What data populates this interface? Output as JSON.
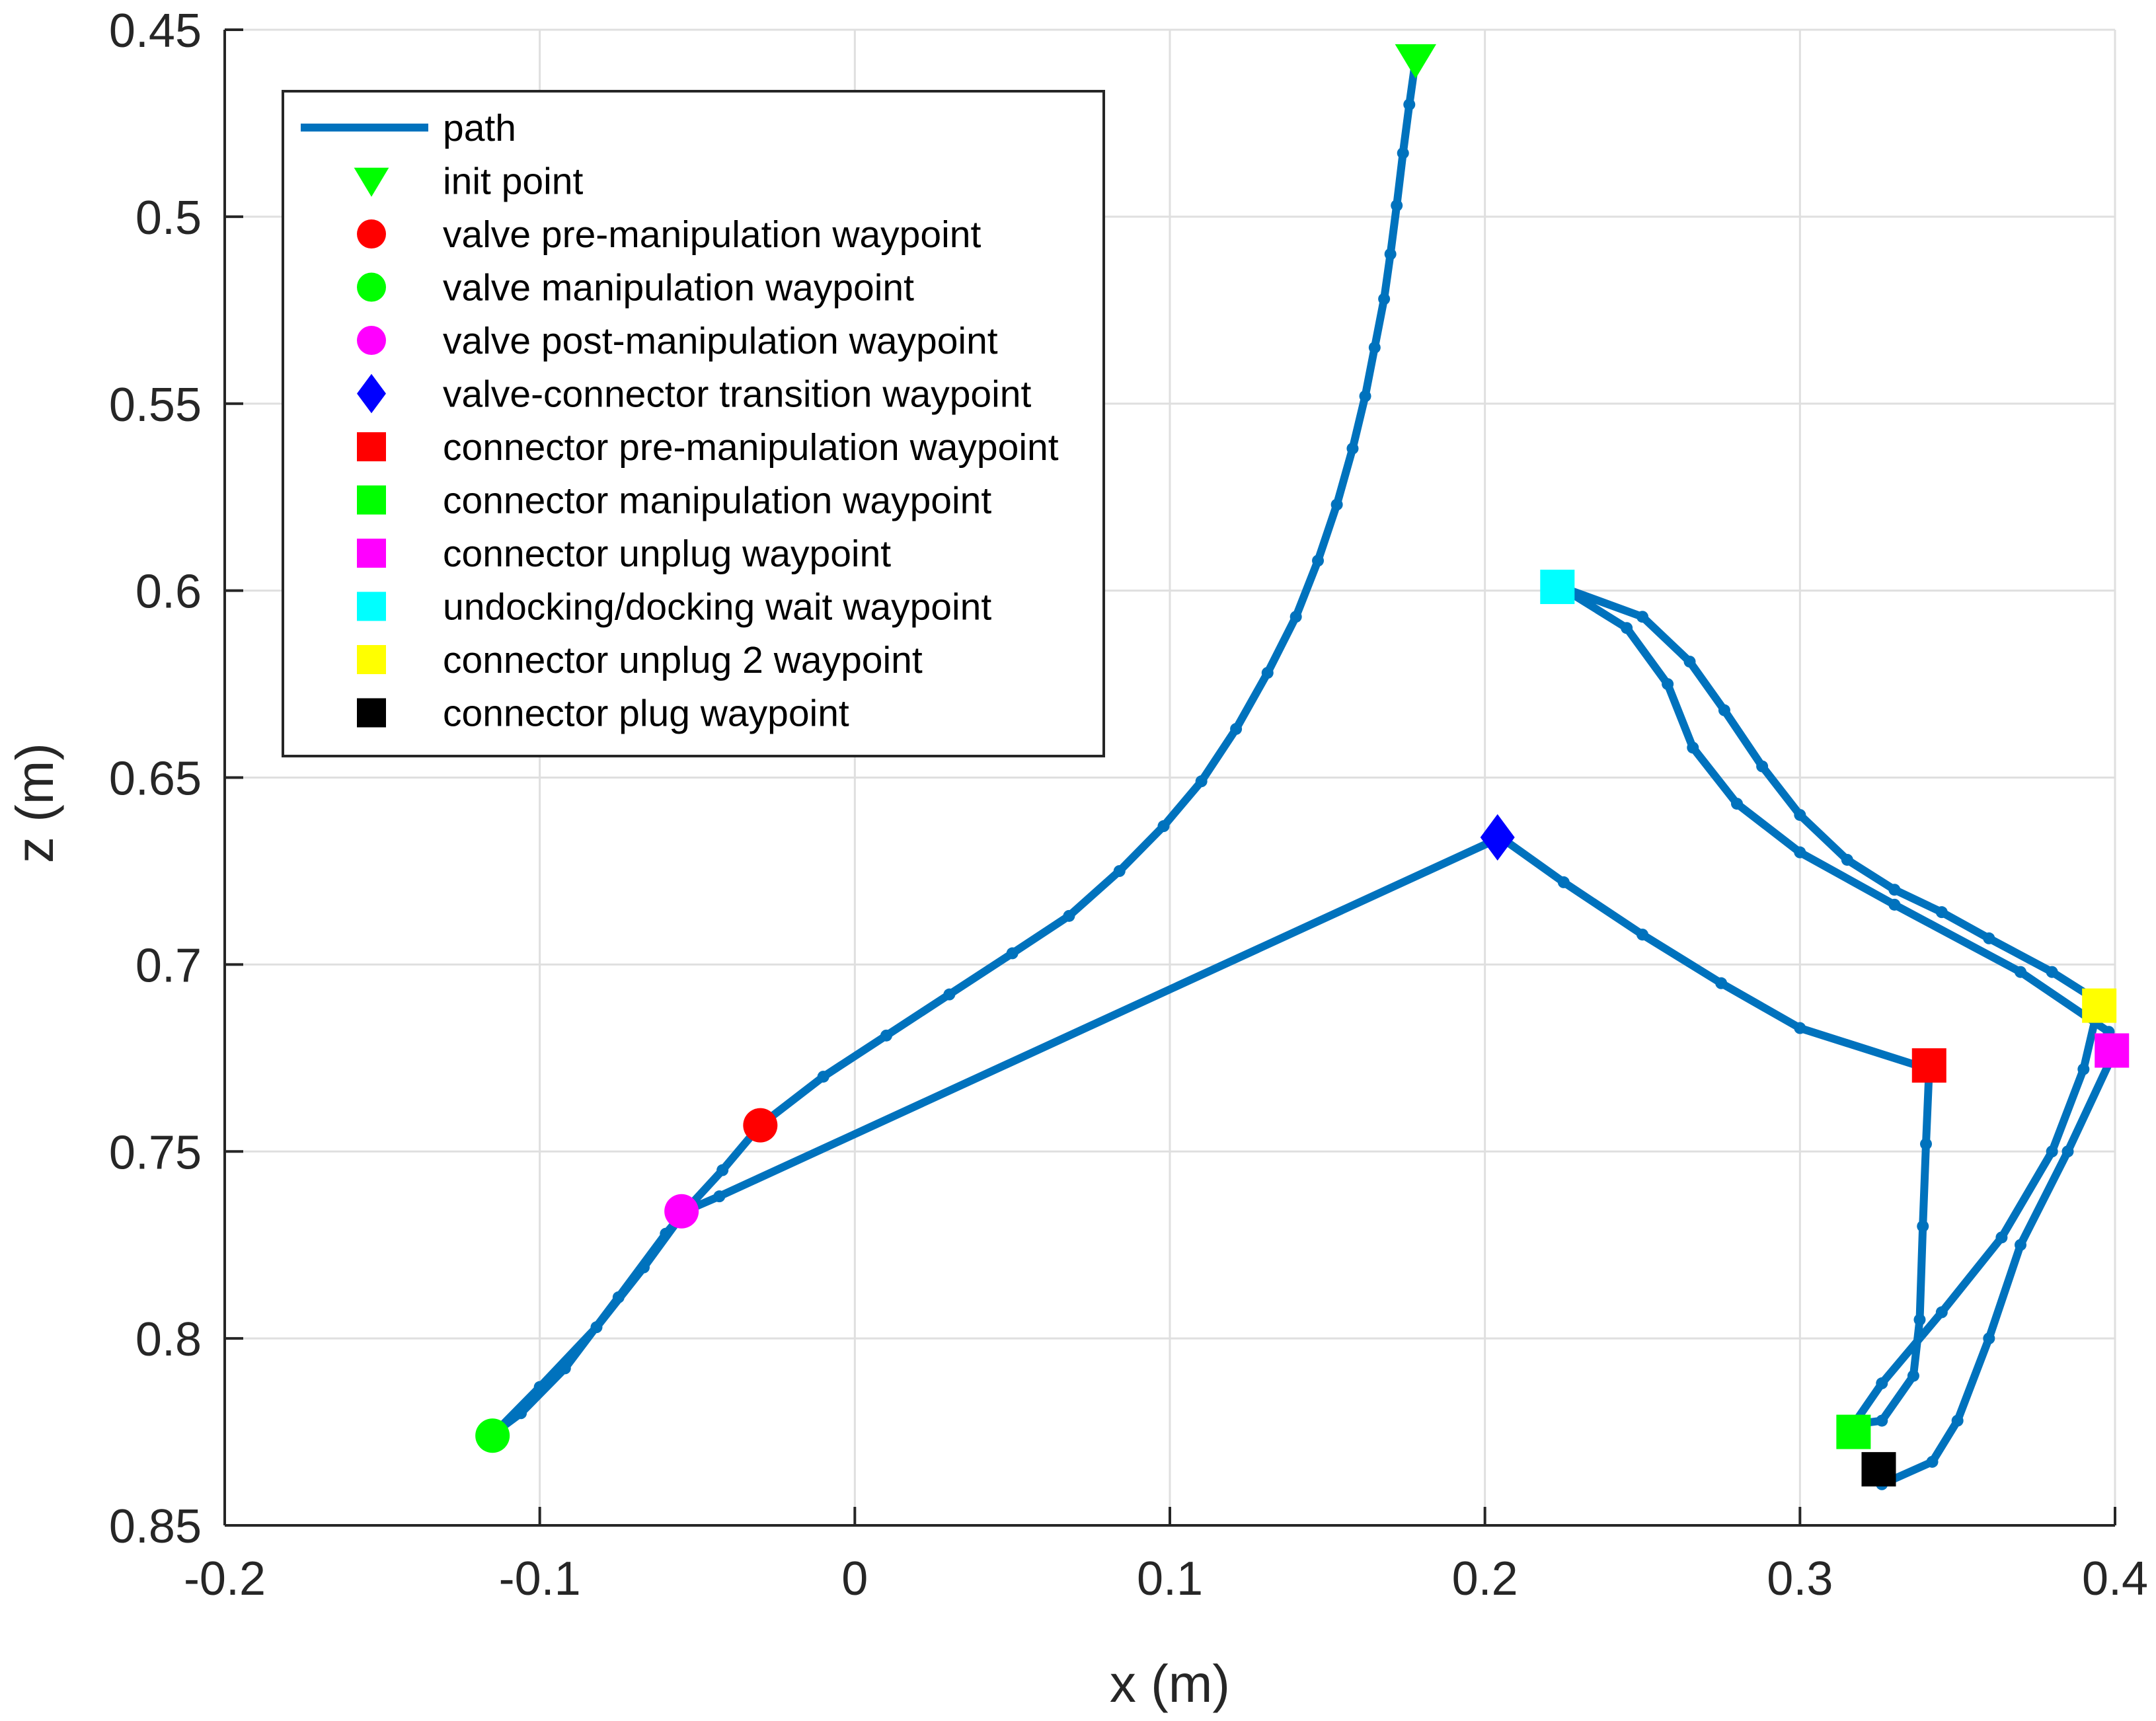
{
  "chart_data": {
    "type": "line",
    "title": "",
    "xlabel": "x (m)",
    "ylabel": "z (m)",
    "xlim": [
      -0.2,
      0.4
    ],
    "ylim": [
      0.45,
      0.85
    ],
    "y_reversed": true,
    "grid": true,
    "legend_position": "top-left",
    "x_ticks": [
      -0.2,
      -0.1,
      0,
      0.1,
      0.2,
      0.3,
      0.4
    ],
    "x_tick_labels": [
      "-0.2",
      "-0.1",
      "0",
      "0.1",
      "0.2",
      "0.3",
      "0.4"
    ],
    "y_ticks": [
      0.45,
      0.5,
      0.55,
      0.6,
      0.65,
      0.7,
      0.75,
      0.8,
      0.85
    ],
    "y_tick_labels": [
      "0.45",
      "0.5",
      "0.55",
      "0.6",
      "0.65",
      "0.7",
      "0.75",
      "0.8",
      "0.85"
    ],
    "path": {
      "name": "path",
      "color": "#0072BD",
      "points": [
        [
          0.178,
          0.458
        ],
        [
          0.176,
          0.47
        ],
        [
          0.174,
          0.483
        ],
        [
          0.172,
          0.497
        ],
        [
          0.17,
          0.51
        ],
        [
          0.168,
          0.522
        ],
        [
          0.165,
          0.535
        ],
        [
          0.162,
          0.548
        ],
        [
          0.158,
          0.562
        ],
        [
          0.153,
          0.577
        ],
        [
          0.147,
          0.592
        ],
        [
          0.14,
          0.607
        ],
        [
          0.131,
          0.622
        ],
        [
          0.121,
          0.637
        ],
        [
          0.11,
          0.651
        ],
        [
          0.098,
          0.663
        ],
        [
          0.084,
          0.675
        ],
        [
          0.068,
          0.687
        ],
        [
          0.05,
          0.697
        ],
        [
          0.03,
          0.708
        ],
        [
          0.01,
          0.719
        ],
        [
          -0.01,
          0.73
        ],
        [
          -0.03,
          0.743
        ],
        [
          -0.042,
          0.755
        ],
        [
          -0.054,
          0.766
        ],
        [
          -0.067,
          0.781
        ],
        [
          -0.082,
          0.797
        ],
        [
          -0.1,
          0.813
        ],
        [
          -0.114,
          0.825
        ],
        [
          -0.106,
          0.82
        ],
        [
          -0.092,
          0.808
        ],
        [
          -0.075,
          0.789
        ],
        [
          -0.06,
          0.772
        ],
        [
          -0.054,
          0.766
        ],
        [
          -0.043,
          0.762
        ],
        [
          0.205,
          0.666
        ],
        [
          0.225,
          0.678
        ],
        [
          0.25,
          0.692
        ],
        [
          0.275,
          0.705
        ],
        [
          0.3,
          0.717
        ],
        [
          0.341,
          0.728
        ],
        [
          0.34,
          0.748
        ],
        [
          0.339,
          0.77
        ],
        [
          0.338,
          0.795
        ],
        [
          0.336,
          0.81
        ],
        [
          0.326,
          0.822
        ],
        [
          0.317,
          0.823
        ],
        [
          0.326,
          0.812
        ],
        [
          0.345,
          0.793
        ],
        [
          0.364,
          0.773
        ],
        [
          0.38,
          0.75
        ],
        [
          0.39,
          0.728
        ],
        [
          0.395,
          0.71
        ],
        [
          0.38,
          0.702
        ],
        [
          0.36,
          0.693
        ],
        [
          0.345,
          0.686
        ],
        [
          0.33,
          0.68
        ],
        [
          0.315,
          0.672
        ],
        [
          0.3,
          0.66
        ],
        [
          0.288,
          0.647
        ],
        [
          0.276,
          0.632
        ],
        [
          0.265,
          0.619
        ],
        [
          0.25,
          0.607
        ],
        [
          0.224,
          0.599
        ],
        [
          0.245,
          0.61
        ],
        [
          0.258,
          0.625
        ],
        [
          0.266,
          0.642
        ],
        [
          0.28,
          0.657
        ],
        [
          0.3,
          0.67
        ],
        [
          0.33,
          0.684
        ],
        [
          0.37,
          0.702
        ],
        [
          0.398,
          0.718
        ],
        [
          0.4,
          0.723
        ],
        [
          0.385,
          0.75
        ],
        [
          0.37,
          0.775
        ],
        [
          0.36,
          0.8
        ],
        [
          0.35,
          0.822
        ],
        [
          0.342,
          0.833
        ],
        [
          0.326,
          0.839
        ]
      ]
    },
    "legend": [
      {
        "label": "path",
        "symbol": "line",
        "color": "#0072BD"
      },
      {
        "label": "init point",
        "symbol": "triangle-down",
        "color": "#00FF00"
      },
      {
        "label": "valve pre-manipulation waypoint",
        "symbol": "circle",
        "color": "#FF0000"
      },
      {
        "label": "valve manipulation waypoint",
        "symbol": "circle",
        "color": "#00FF00"
      },
      {
        "label": "valve post-manipulation waypoint",
        "symbol": "circle",
        "color": "#FF00FF"
      },
      {
        "label": "valve-connector transition waypoint",
        "symbol": "diamond",
        "color": "#0000FF"
      },
      {
        "label": "connector pre-manipulation waypoint",
        "symbol": "square",
        "color": "#FF0000"
      },
      {
        "label": "connector manipulation waypoint",
        "symbol": "square",
        "color": "#00FF00"
      },
      {
        "label": "connector unplug waypoint",
        "symbol": "square",
        "color": "#FF00FF"
      },
      {
        "label": "undocking/docking wait waypoint",
        "symbol": "square",
        "color": "#00FFFF"
      },
      {
        "label": "connector unplug 2 waypoint",
        "symbol": "square",
        "color": "#FFFF00"
      },
      {
        "label": "connector plug waypoint",
        "symbol": "square",
        "color": "#000000"
      }
    ],
    "markers": [
      {
        "name": "init point",
        "x": 0.178,
        "y": 0.458,
        "symbol": "triangle-down",
        "color": "#00FF00"
      },
      {
        "name": "valve pre-manipulation waypoint",
        "x": -0.03,
        "y": 0.743,
        "symbol": "circle",
        "color": "#FF0000"
      },
      {
        "name": "valve manipulation waypoint",
        "x": -0.115,
        "y": 0.826,
        "symbol": "circle",
        "color": "#00FF00"
      },
      {
        "name": "valve post-manipulation waypoint",
        "x": -0.055,
        "y": 0.766,
        "symbol": "circle",
        "color": "#FF00FF"
      },
      {
        "name": "valve-connector transition waypoint",
        "x": 0.204,
        "y": 0.666,
        "symbol": "diamond",
        "color": "#0000FF"
      },
      {
        "name": "connector pre-manipulation waypoint",
        "x": 0.341,
        "y": 0.727,
        "symbol": "square",
        "color": "#FF0000"
      },
      {
        "name": "connector manipulation waypoint",
        "x": 0.317,
        "y": 0.825,
        "symbol": "square",
        "color": "#00FF00"
      },
      {
        "name": "connector unplug waypoint",
        "x": 0.399,
        "y": 0.723,
        "symbol": "square",
        "color": "#FF00FF"
      },
      {
        "name": "undocking/docking wait waypoint",
        "x": 0.223,
        "y": 0.599,
        "symbol": "square",
        "color": "#00FFFF"
      },
      {
        "name": "connector unplug 2 waypoint",
        "x": 0.395,
        "y": 0.711,
        "symbol": "square",
        "color": "#FFFF00"
      },
      {
        "name": "connector plug waypoint",
        "x": 0.325,
        "y": 0.835,
        "symbol": "square",
        "color": "#000000"
      }
    ]
  }
}
